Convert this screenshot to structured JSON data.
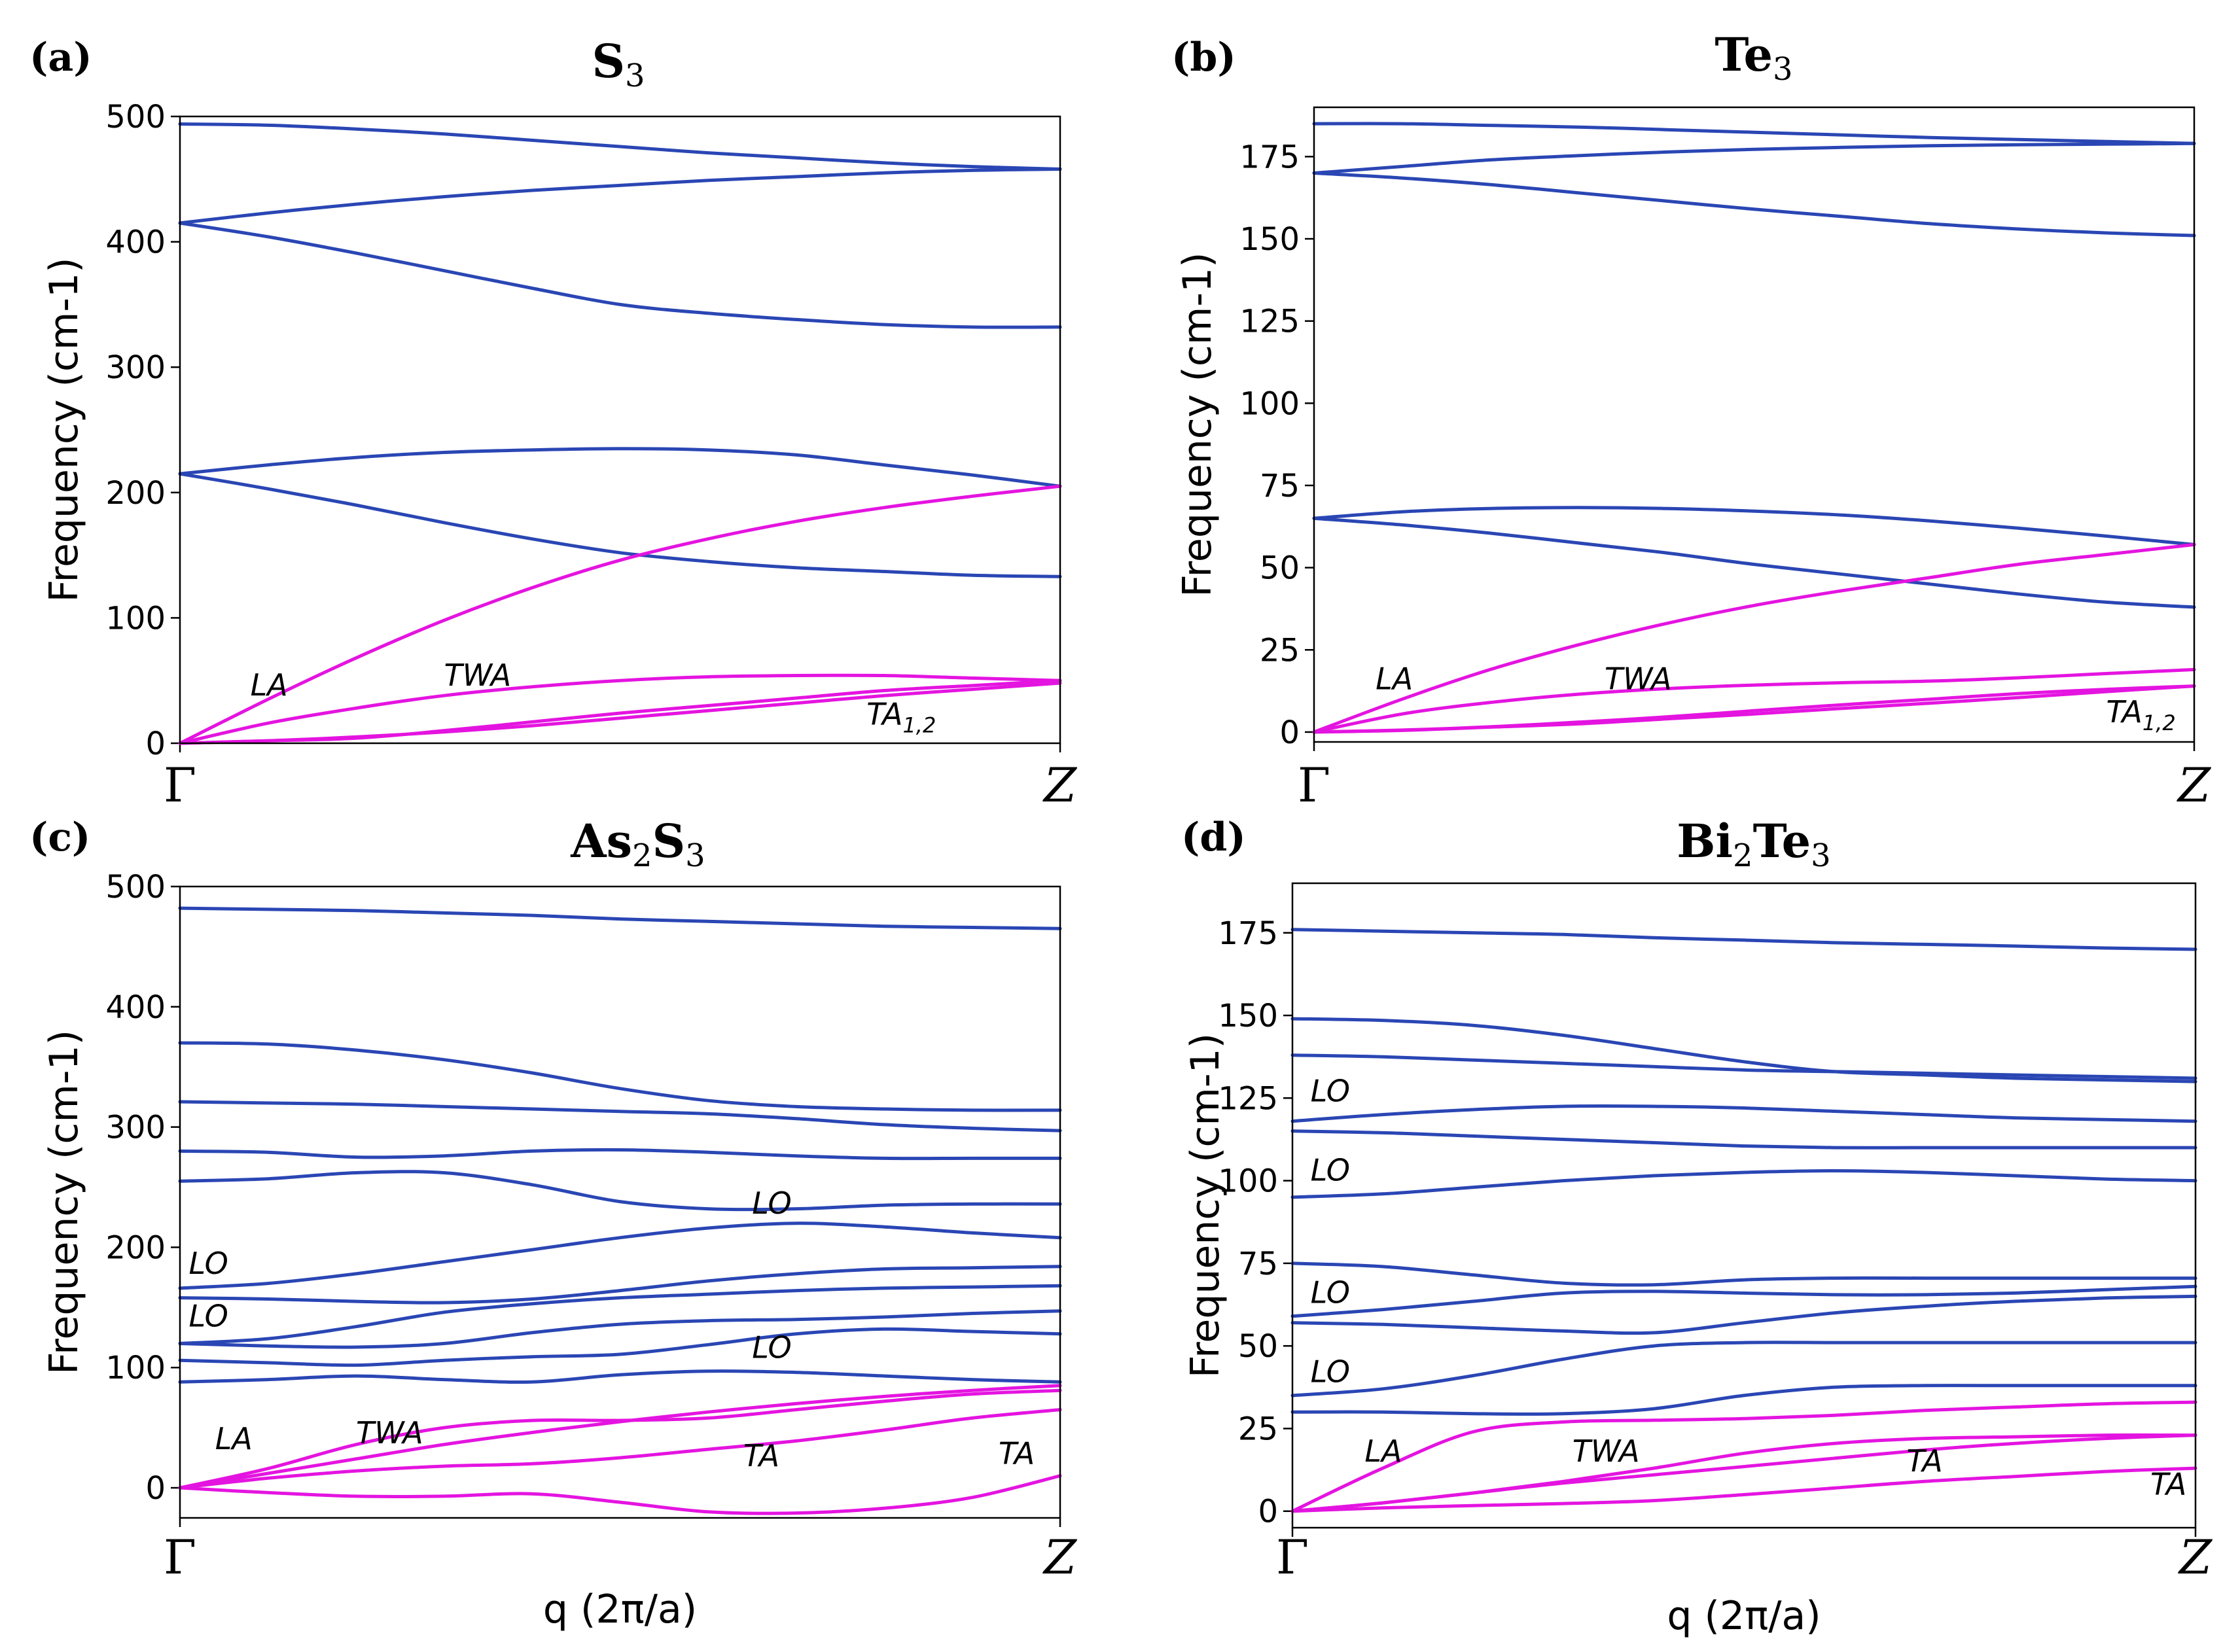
{
  "colors": {
    "optical": "#2a46b4",
    "acoustic": "#e414e0"
  },
  "chart_data": [
    {
      "type": "line",
      "panel": "(a)",
      "title": "S",
      "title_sub": "3",
      "ylabel": "Frequency (cm-1)",
      "xlabel": "",
      "xticks": [
        "Γ",
        "Z"
      ],
      "ylim": [
        0,
        500
      ],
      "yticks": [
        0,
        100,
        200,
        300,
        400,
        500
      ],
      "x": [
        0,
        0.1,
        0.2,
        0.3,
        0.4,
        0.5,
        0.6,
        0.7,
        0.8,
        0.9,
        1.0
      ],
      "series": [
        {
          "name": "optical-1",
          "kind": "optical",
          "values": [
            494,
            493,
            490,
            486,
            481,
            476,
            471,
            467,
            463,
            460,
            458
          ]
        },
        {
          "name": "optical-2",
          "kind": "optical",
          "values": [
            415,
            423,
            430,
            436,
            441,
            445,
            449,
            452,
            455,
            457,
            458
          ]
        },
        {
          "name": "optical-3",
          "kind": "optical",
          "values": [
            415,
            404,
            391,
            377,
            363,
            350,
            343,
            338,
            334,
            332,
            332
          ]
        },
        {
          "name": "optical-4",
          "kind": "optical",
          "values": [
            215,
            222,
            228,
            232,
            234,
            235,
            234,
            230,
            222,
            214,
            205
          ]
        },
        {
          "name": "optical-5",
          "kind": "optical",
          "values": [
            215,
            203,
            190,
            176,
            163,
            152,
            145,
            140,
            137,
            134,
            133
          ]
        },
        {
          "name": "LA",
          "kind": "acoustic",
          "values": [
            0,
            35,
            68,
            98,
            124,
            146,
            163,
            177,
            188,
            197,
            205
          ]
        },
        {
          "name": "TWA",
          "kind": "acoustic",
          "values": [
            0,
            16,
            28,
            38,
            45,
            50,
            53,
            54,
            54,
            52,
            50
          ]
        },
        {
          "name": "TA-1",
          "kind": "acoustic",
          "values": [
            0,
            2,
            4,
            10,
            17,
            24,
            30,
            36,
            42,
            46,
            50
          ]
        },
        {
          "name": "TA-2",
          "kind": "acoustic",
          "values": [
            0,
            2,
            5,
            9,
            14,
            20,
            26,
            32,
            38,
            43,
            48
          ]
        }
      ],
      "annotations": [
        {
          "text": "LA",
          "x": 0.08,
          "y": 38
        },
        {
          "text": "TWA",
          "x": 0.3,
          "y": 46
        },
        {
          "text": "TA",
          "sub": "1,2",
          "x": 0.78,
          "y": 15
        }
      ]
    },
    {
      "type": "line",
      "panel": "(b)",
      "title": "Te",
      "title_sub": "3",
      "ylabel": "Frequency (cm-1)",
      "xlabel": "",
      "xticks": [
        "Γ",
        "Z"
      ],
      "ylim": [
        -3,
        190
      ],
      "yticks": [
        0,
        25,
        50,
        75,
        100,
        125,
        150,
        175
      ],
      "x": [
        0,
        0.1,
        0.2,
        0.3,
        0.4,
        0.5,
        0.6,
        0.7,
        0.8,
        0.9,
        1.0
      ],
      "series": [
        {
          "name": "optical-1",
          "kind": "optical",
          "values": [
            185,
            185,
            184.5,
            184,
            183.2,
            182.4,
            181.6,
            180.8,
            180.2,
            179.6,
            179
          ]
        },
        {
          "name": "optical-2",
          "kind": "optical",
          "values": [
            170,
            172,
            174,
            175.3,
            176.4,
            177.2,
            177.8,
            178.3,
            178.6,
            178.8,
            179
          ]
        },
        {
          "name": "optical-3",
          "kind": "optical",
          "values": [
            170,
            168.5,
            166.5,
            164,
            161.5,
            159,
            156.8,
            154.6,
            153,
            151.8,
            151
          ]
        },
        {
          "name": "optical-4",
          "kind": "optical",
          "values": [
            65,
            67,
            68,
            68.3,
            68,
            67.2,
            66,
            64.2,
            62,
            59.6,
            57
          ]
        },
        {
          "name": "optical-5",
          "kind": "optical",
          "values": [
            65,
            63,
            60.5,
            57.5,
            54.5,
            51,
            48,
            45,
            42,
            39.5,
            38
          ]
        },
        {
          "name": "LA",
          "kind": "acoustic",
          "values": [
            0,
            10,
            19,
            26.5,
            33,
            38.5,
            43,
            47,
            51,
            54,
            57
          ]
        },
        {
          "name": "TWA",
          "kind": "acoustic",
          "values": [
            0,
            5.5,
            9,
            11.5,
            13.2,
            14.3,
            15,
            15.5,
            16.5,
            17.8,
            19
          ]
        },
        {
          "name": "TA-1",
          "kind": "acoustic",
          "values": [
            0,
            0.5,
            1.5,
            2.5,
            4,
            5.5,
            7.2,
            8.8,
            10.5,
            12.3,
            14
          ]
        },
        {
          "name": "TA-2",
          "kind": "acoustic",
          "values": [
            0,
            0.6,
            1.6,
            3,
            4.6,
            6.5,
            8.3,
            10,
            11.7,
            13,
            14
          ]
        }
      ],
      "annotations": [
        {
          "text": "LA",
          "x": 0.07,
          "y": 13
        },
        {
          "text": "TWA",
          "x": 0.33,
          "y": 13
        },
        {
          "text": "TA",
          "sub": "1,2",
          "x": 0.9,
          "y": 3
        }
      ]
    },
    {
      "type": "line",
      "panel": "(c)",
      "title": "As",
      "title_sub": "2",
      "title_mid": "S",
      "title_sub2": "3",
      "ylabel": "Frequency (cm-1)",
      "xlabel": "q (2π/a)",
      "xticks": [
        "Γ",
        "Z"
      ],
      "ylim": [
        -25,
        500
      ],
      "yticks": [
        0,
        100,
        200,
        300,
        400,
        500
      ],
      "x": [
        0,
        0.1,
        0.2,
        0.3,
        0.4,
        0.5,
        0.6,
        0.7,
        0.8,
        0.9,
        1.0
      ],
      "series": [
        {
          "name": "optical-1",
          "kind": "optical",
          "values": [
            482,
            481,
            480,
            478,
            476,
            473,
            471,
            469,
            467,
            466,
            465
          ]
        },
        {
          "name": "optical-2",
          "kind": "optical",
          "values": [
            370,
            369,
            364,
            356,
            345,
            332,
            322,
            317,
            315,
            314,
            314
          ]
        },
        {
          "name": "optical-3",
          "kind": "optical",
          "values": [
            321,
            320,
            319,
            317,
            315,
            313,
            311,
            307,
            302,
            299,
            297
          ]
        },
        {
          "name": "optical-4",
          "kind": "optical",
          "values": [
            280,
            279,
            275,
            276,
            280,
            281,
            279,
            276,
            274,
            274,
            274
          ]
        },
        {
          "name": "optical-5",
          "kind": "optical",
          "values": [
            255,
            257,
            262,
            262,
            252,
            238,
            232,
            232,
            235,
            236,
            236
          ]
        },
        {
          "name": "optical-6",
          "kind": "optical",
          "values": [
            166,
            170,
            178,
            188,
            198,
            208,
            216,
            220,
            217,
            212,
            208
          ]
        },
        {
          "name": "optical-7",
          "kind": "optical",
          "values": [
            158,
            157,
            155,
            154,
            157,
            164,
            172,
            178,
            182,
            183,
            184
          ]
        },
        {
          "name": "optical-8",
          "kind": "optical",
          "values": [
            120,
            124,
            134,
            146,
            153,
            158,
            161,
            164,
            166,
            167,
            168
          ]
        },
        {
          "name": "optical-9",
          "kind": "optical",
          "values": [
            120,
            118,
            117,
            120,
            129,
            136,
            139,
            140,
            142,
            145,
            147
          ]
        },
        {
          "name": "optical-10",
          "kind": "optical",
          "values": [
            106,
            104,
            102,
            106,
            109,
            111,
            119,
            128,
            132,
            130,
            128
          ]
        },
        {
          "name": "optical-11",
          "kind": "optical",
          "values": [
            88,
            90,
            93,
            90,
            88,
            94,
            97,
            96,
            93,
            90,
            88
          ]
        },
        {
          "name": "LA",
          "kind": "acoustic",
          "values": [
            0,
            16,
            36,
            50,
            56,
            56,
            58,
            65,
            72,
            78,
            81
          ]
        },
        {
          "name": "TWA",
          "kind": "acoustic",
          "values": [
            0,
            12,
            24,
            36,
            46,
            55,
            63,
            70,
            76,
            81,
            85
          ]
        },
        {
          "name": "TA-1",
          "kind": "acoustic",
          "values": [
            0,
            8,
            14,
            18,
            20,
            25,
            32,
            39,
            48,
            58,
            65
          ]
        },
        {
          "name": "TA-2",
          "kind": "acoustic",
          "values": [
            0,
            -4,
            -7,
            -7,
            -5,
            -12,
            -20,
            -21,
            -17,
            -8,
            10
          ]
        }
      ],
      "annotations": [
        {
          "text": "LA",
          "x": 0.04,
          "y": 32
        },
        {
          "text": "TWA",
          "x": 0.2,
          "y": 37
        },
        {
          "text": "TA",
          "x": 0.64,
          "y": 18
        },
        {
          "text": "TA",
          "x": 0.93,
          "y": 20
        },
        {
          "text": "LO",
          "x": 0.01,
          "y": 178
        },
        {
          "text": "LO",
          "x": 0.01,
          "y": 134
        },
        {
          "text": "LO",
          "x": 0.65,
          "y": 228
        },
        {
          "text": "LO",
          "x": 0.65,
          "y": 108
        }
      ]
    },
    {
      "type": "line",
      "panel": "(d)",
      "title": "Bi",
      "title_sub": "2",
      "title_mid": "Te",
      "title_sub2": "3",
      "ylabel": "Frequency (cm-1)",
      "xlabel": "q (2π/a)",
      "xticks": [
        "Γ",
        "Z"
      ],
      "ylim": [
        -5,
        190
      ],
      "yticks": [
        0,
        25,
        50,
        75,
        100,
        125,
        150,
        175
      ],
      "x": [
        0,
        0.1,
        0.2,
        0.3,
        0.4,
        0.5,
        0.6,
        0.7,
        0.8,
        0.9,
        1.0
      ],
      "series": [
        {
          "name": "optical-1",
          "kind": "optical",
          "values": [
            176,
            175.5,
            175,
            174.5,
            173.5,
            172.8,
            172,
            171.5,
            171,
            170.4,
            170
          ]
        },
        {
          "name": "optical-2",
          "kind": "optical",
          "values": [
            149,
            148.5,
            147,
            144,
            140,
            136,
            133,
            132,
            131,
            130.5,
            130
          ]
        },
        {
          "name": "optical-3",
          "kind": "optical",
          "values": [
            138,
            137.5,
            136.5,
            135.5,
            134.5,
            133.5,
            133,
            132.5,
            132,
            131.5,
            131
          ]
        },
        {
          "name": "optical-4",
          "kind": "optical",
          "values": [
            118,
            120,
            121.5,
            122.5,
            122.5,
            122,
            121,
            120,
            119,
            118.5,
            118
          ]
        },
        {
          "name": "optical-5",
          "kind": "optical",
          "values": [
            115,
            114.5,
            113.5,
            112.5,
            111.5,
            110.5,
            110,
            110,
            110,
            110,
            110
          ]
        },
        {
          "name": "optical-6",
          "kind": "optical",
          "values": [
            95,
            96,
            98,
            100,
            101.5,
            102.5,
            103,
            102.5,
            101.5,
            100.5,
            100
          ]
        },
        {
          "name": "optical-7",
          "kind": "optical",
          "values": [
            75,
            74,
            71.5,
            69,
            68.5,
            70,
            70.5,
            70.5,
            70.5,
            70.5,
            70.5
          ]
        },
        {
          "name": "optical-8",
          "kind": "optical",
          "values": [
            59,
            61,
            63.5,
            66,
            66.5,
            66,
            65.5,
            65.5,
            66,
            67,
            68
          ]
        },
        {
          "name": "optical-9",
          "kind": "optical",
          "values": [
            57,
            56.5,
            55.5,
            54.5,
            54,
            57,
            60,
            62,
            63.5,
            64.5,
            65
          ]
        },
        {
          "name": "optical-10",
          "kind": "optical",
          "values": [
            35,
            37,
            41,
            46,
            50,
            51,
            51,
            51,
            51,
            51,
            51
          ]
        },
        {
          "name": "optical-11",
          "kind": "optical",
          "values": [
            30,
            30,
            29.5,
            29.5,
            31,
            35,
            37.5,
            38,
            38,
            38,
            38
          ]
        },
        {
          "name": "LA",
          "kind": "acoustic",
          "values": [
            0,
            13,
            24,
            27,
            27.5,
            28,
            29,
            30.5,
            31.5,
            32.5,
            33
          ]
        },
        {
          "name": "TWA",
          "kind": "acoustic",
          "values": [
            0,
            2.5,
            5.5,
            9,
            13,
            17.5,
            20.5,
            22,
            22.5,
            23,
            23
          ]
        },
        {
          "name": "TA-1",
          "kind": "acoustic",
          "values": [
            0,
            2.5,
            5.5,
            8.5,
            11,
            13.5,
            16,
            18.5,
            20.5,
            22,
            23
          ]
        },
        {
          "name": "TA-2",
          "kind": "acoustic",
          "values": [
            0,
            1,
            1.7,
            2.3,
            3.2,
            5,
            7,
            9,
            10.5,
            12,
            13
          ]
        }
      ],
      "annotations": [
        {
          "text": "LA",
          "x": 0.08,
          "y": 15
        },
        {
          "text": "TWA",
          "x": 0.31,
          "y": 15
        },
        {
          "text": "TA",
          "x": 0.68,
          "y": 12
        },
        {
          "text": "TA",
          "x": 0.95,
          "y": 5
        },
        {
          "text": "LO",
          "x": 0.02,
          "y": 124
        },
        {
          "text": "LO",
          "x": 0.02,
          "y": 100
        },
        {
          "text": "LO",
          "x": 0.02,
          "y": 63
        },
        {
          "text": "LO",
          "x": 0.02,
          "y": 39
        }
      ]
    }
  ]
}
